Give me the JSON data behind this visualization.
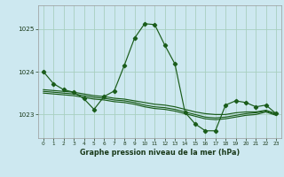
{
  "title": "Graphe pression niveau de la mer (hPa)",
  "background_color": "#cde8f0",
  "line_color": "#1a5c1a",
  "grid_color": "#a8cfc0",
  "x_values": [
    0,
    1,
    2,
    3,
    4,
    5,
    6,
    7,
    8,
    9,
    10,
    11,
    12,
    13,
    14,
    15,
    16,
    17,
    18,
    19,
    20,
    21,
    22,
    23
  ],
  "y_main": [
    1024.0,
    1023.72,
    1023.58,
    1023.52,
    1023.37,
    1023.12,
    1023.42,
    1023.55,
    1024.15,
    1024.78,
    1025.12,
    1025.1,
    1024.62,
    1024.18,
    1023.05,
    1022.78,
    1022.62,
    1022.62,
    1023.22,
    1023.32,
    1023.28,
    1023.18,
    1023.22,
    1023.02
  ],
  "y_line2": [
    1023.58,
    1023.56,
    1023.54,
    1023.52,
    1023.48,
    1023.44,
    1023.42,
    1023.38,
    1023.36,
    1023.32,
    1023.28,
    1023.24,
    1023.22,
    1023.18,
    1023.12,
    1023.06,
    1023.02,
    1023.0,
    1023.0,
    1023.04,
    1023.06,
    1023.06,
    1023.1,
    1023.02
  ],
  "y_line3": [
    1023.54,
    1023.52,
    1023.5,
    1023.48,
    1023.44,
    1023.4,
    1023.38,
    1023.34,
    1023.32,
    1023.28,
    1023.22,
    1023.18,
    1023.16,
    1023.12,
    1023.06,
    1023.0,
    1022.94,
    1022.92,
    1022.94,
    1022.98,
    1023.02,
    1023.04,
    1023.08,
    1023.0
  ],
  "y_line4": [
    1023.5,
    1023.48,
    1023.46,
    1023.44,
    1023.4,
    1023.36,
    1023.34,
    1023.3,
    1023.28,
    1023.24,
    1023.18,
    1023.14,
    1023.12,
    1023.08,
    1023.02,
    1022.96,
    1022.9,
    1022.88,
    1022.9,
    1022.94,
    1022.98,
    1023.0,
    1023.06,
    1022.98
  ],
  "yticks": [
    1023,
    1024
  ],
  "ylim": [
    1022.45,
    1025.55
  ],
  "xlim": [
    -0.5,
    23.5
  ],
  "ylabel_1025_partial": true
}
